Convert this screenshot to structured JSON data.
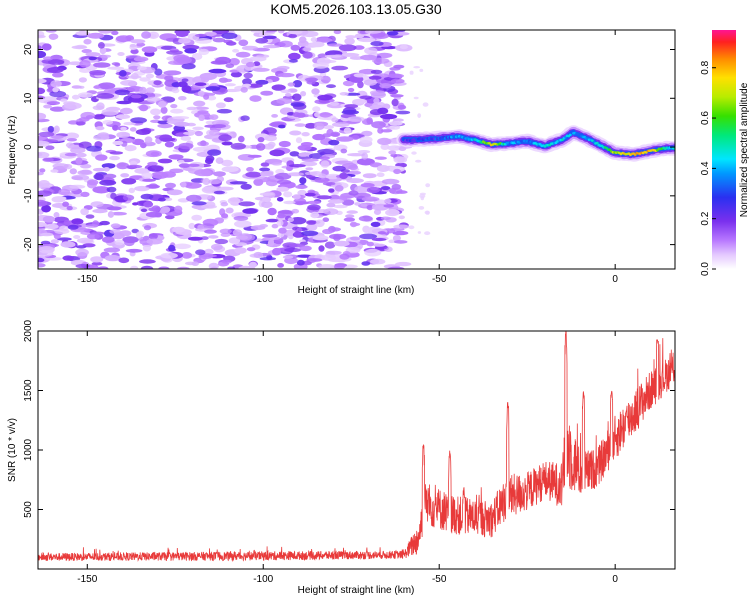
{
  "figure": {
    "title": "KOM5.2026.103.13.05.G30"
  },
  "colors": {
    "line": "#e83a3a",
    "axis": "#000000",
    "background": "#ffffff"
  },
  "chart_data": [
    {
      "type": "heatmap",
      "xlabel": "Height of straight line (km)",
      "ylabel": "Frequency (Hz)",
      "xlim": [
        -164,
        17
      ],
      "ylim": [
        -25,
        24
      ],
      "xticks": [
        -150,
        -100,
        -50,
        0
      ],
      "xtick_labels": [
        "-150",
        "-100",
        "-50",
        "0"
      ],
      "yticks": [
        -20,
        -10,
        0,
        10,
        20
      ],
      "ytick_labels": [
        "-20",
        "-10",
        "0",
        "10",
        "20"
      ],
      "noise_region": {
        "x": [
          -164,
          -60
        ],
        "y": [
          -25,
          24
        ],
        "typical_amplitude": 0.1
      },
      "ridge": {
        "description": "Narrow high-amplitude ridge near 0 Hz after -60 km",
        "points": [
          {
            "x": -60,
            "y": 1.5,
            "amp": 0.25
          },
          {
            "x": -57,
            "y": 1.5,
            "amp": 0.3
          },
          {
            "x": -50,
            "y": 1.8,
            "amp": 0.3
          },
          {
            "x": -45,
            "y": 2.2,
            "amp": 0.4
          },
          {
            "x": -40,
            "y": 1.5,
            "amp": 0.45
          },
          {
            "x": -35,
            "y": 0.5,
            "amp": 0.8
          },
          {
            "x": -30,
            "y": 0.8,
            "amp": 0.4
          },
          {
            "x": -25,
            "y": 1.2,
            "amp": 0.35
          },
          {
            "x": -20,
            "y": 0.2,
            "amp": 0.5
          },
          {
            "x": -15,
            "y": 1.5,
            "amp": 0.45
          },
          {
            "x": -12,
            "y": 3.0,
            "amp": 0.4
          },
          {
            "x": -8,
            "y": 1.8,
            "amp": 0.4
          },
          {
            "x": -4,
            "y": 0.3,
            "amp": 0.5
          },
          {
            "x": 0,
            "y": -1.2,
            "amp": 0.75
          },
          {
            "x": 5,
            "y": -1.5,
            "amp": 0.8
          },
          {
            "x": 10,
            "y": -0.8,
            "amp": 0.85
          },
          {
            "x": 14,
            "y": -0.3,
            "amp": 0.5
          },
          {
            "x": 17,
            "y": -0.2,
            "amp": 0.45
          }
        ]
      },
      "colorbar": {
        "label": "Normalized spectral amplitude",
        "range": [
          0.0,
          0.95
        ],
        "ticks": [
          0.0,
          0.2,
          0.4,
          0.6,
          0.8
        ],
        "tick_labels": [
          "0.0",
          "0.2",
          "0.4",
          "0.6",
          "0.8"
        ]
      }
    },
    {
      "type": "line",
      "xlabel": "Height of straight line (km)",
      "ylabel": "SNR (10 * v/v)",
      "xlim": [
        -164,
        17
      ],
      "ylim": [
        0,
        2000
      ],
      "xticks": [
        -150,
        -100,
        -50,
        0
      ],
      "xtick_labels": [
        "-150",
        "-100",
        "-50",
        "0"
      ],
      "yticks": [
        500,
        1000,
        1500,
        2000
      ],
      "ytick_labels": [
        "500",
        "1000",
        "1500",
        "2000"
      ],
      "series": [
        {
          "name": "SNR",
          "color": "#e83a3a",
          "envelope": [
            {
              "x": -164,
              "base": 100,
              "spread": 60
            },
            {
              "x": -100,
              "base": 110,
              "spread": 70
            },
            {
              "x": -60,
              "base": 120,
              "spread": 60
            },
            {
              "x": -56,
              "base": 250,
              "spread": 250
            },
            {
              "x": -54,
              "base": 550,
              "spread": 350
            },
            {
              "x": -45,
              "base": 450,
              "spread": 300
            },
            {
              "x": -35,
              "base": 420,
              "spread": 280
            },
            {
              "x": -31,
              "base": 600,
              "spread": 350
            },
            {
              "x": -25,
              "base": 650,
              "spread": 300
            },
            {
              "x": -20,
              "base": 750,
              "spread": 300
            },
            {
              "x": -15,
              "base": 700,
              "spread": 350
            },
            {
              "x": -14,
              "base": 1050,
              "spread": 700
            },
            {
              "x": -10,
              "base": 800,
              "spread": 350
            },
            {
              "x": -5,
              "base": 850,
              "spread": 300
            },
            {
              "x": 0,
              "base": 1100,
              "spread": 350
            },
            {
              "x": 5,
              "base": 1300,
              "spread": 350
            },
            {
              "x": 10,
              "base": 1500,
              "spread": 300
            },
            {
              "x": 17,
              "base": 1700,
              "spread": 250
            }
          ],
          "spikes": [
            {
              "x": -54.5,
              "y": 1050
            },
            {
              "x": -47,
              "y": 1000
            },
            {
              "x": -43,
              "y": 700
            },
            {
              "x": -30.5,
              "y": 1400
            },
            {
              "x": -14,
              "y": 2000
            },
            {
              "x": -9,
              "y": 1500
            },
            {
              "x": -1,
              "y": 1500
            },
            {
              "x": 12,
              "y": 1930
            }
          ]
        }
      ]
    }
  ]
}
